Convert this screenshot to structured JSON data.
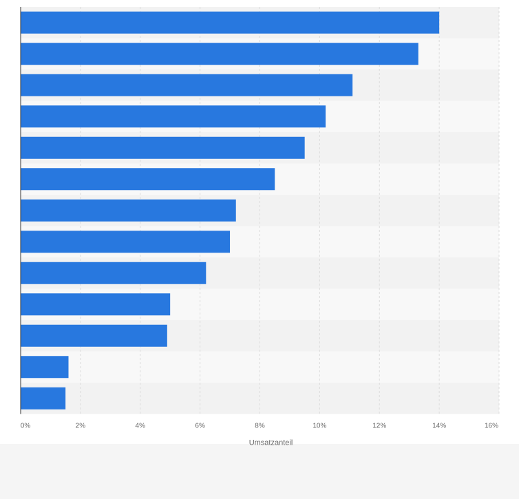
{
  "chart_data": {
    "type": "bar",
    "orientation": "horizontal",
    "categories": [
      "",
      "",
      "",
      "",
      "",
      "",
      "",
      "",
      "",
      "",
      "",
      "",
      ""
    ],
    "values": [
      14.0,
      13.3,
      11.1,
      10.2,
      9.5,
      8.5,
      7.2,
      7.0,
      6.2,
      5.0,
      4.9,
      1.6,
      1.5
    ],
    "xlabel": "Umsatzanteil",
    "ylabel": "",
    "xlim": [
      0,
      16
    ],
    "x_ticks": [
      "0%",
      "2%",
      "4%",
      "6%",
      "8%",
      "10%",
      "12%",
      "14%",
      "16%"
    ],
    "grid": true,
    "bar_color": "#2878df"
  }
}
